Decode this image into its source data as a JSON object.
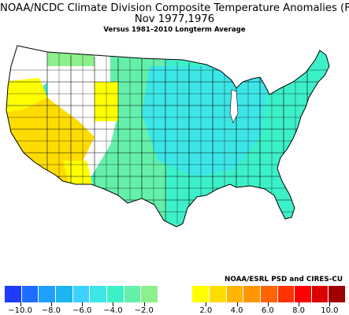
{
  "title": {
    "line1": "NOAA/NCDC Climate Division Composite Temperature Anomalies (F)",
    "line2": "Nov   1977,1976",
    "line3": "Versus 1981–2010 Longterm Average"
  },
  "credit": "NOAA/ESRL PSD and CIRES-CU",
  "legend": {
    "colors": [
      "#1e3cff",
      "#1e6eff",
      "#1ea0ff",
      "#1eb4f0",
      "#3cd2ff",
      "#3ce6e6",
      "#3cf0c8",
      "#64f0aa",
      "#8cf08c",
      "#ffffff",
      "#ffffff",
      "#ffff00",
      "#ffdc00",
      "#ffb400",
      "#ff9600",
      "#ff6400",
      "#ff3200",
      "#ff0000",
      "#dc0000",
      "#a00000"
    ],
    "tick_labels": [
      "−10.0",
      "−8.0",
      "−6.0",
      "−4.0",
      "−2.0",
      "2.0",
      "4.0",
      "6.0",
      "8.0",
      "10.0"
    ],
    "tick_values": [
      -10,
      -8,
      -6,
      -4,
      -2,
      2,
      4,
      6,
      8,
      10
    ],
    "range": [
      -11,
      11
    ]
  },
  "regions": [
    {
      "name": "Pacific Northwest coast",
      "anomaly_class": "-2 to 0 (white)",
      "color": "#ffffff"
    },
    {
      "name": "Oregon interior / Idaho",
      "anomaly_class": "0 to 2",
      "color": "#ffff00"
    },
    {
      "name": "Nevada / Utah / California",
      "anomaly_class": "2 to 4",
      "color": "#ffdc00"
    },
    {
      "name": "Southern California / Arizona",
      "anomaly_class": "0 to 2",
      "color": "#ffff00"
    },
    {
      "name": "Rockies",
      "anomaly_class": "-2 to 0 (white)",
      "color": "#ffffff"
    },
    {
      "name": "Plains",
      "anomaly_class": "-4 to -2",
      "color": "#64f0aa"
    },
    {
      "name": "Great Lakes / Ohio Valley",
      "anomaly_class": "-6 to -4",
      "color": "#3ce6e6"
    },
    {
      "name": "Southeast / East",
      "anomaly_class": "-4 to -2",
      "color": "#3cf0c8"
    }
  ]
}
